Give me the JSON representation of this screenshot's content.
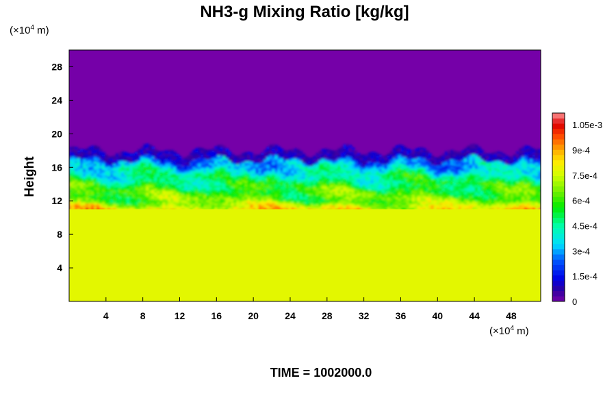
{
  "chart_data": {
    "type": "heatmap",
    "title": "NH3-g Mixing Ratio [kg/kg]",
    "ylabel": "Height",
    "y_unit_prefix": "(×10",
    "y_unit_exp": "4",
    "y_unit_suffix": " m)",
    "x_unit_prefix": "(×10",
    "x_unit_exp": "4",
    "x_unit_suffix": " m)",
    "xlim": [
      0,
      51.2
    ],
    "ylim": [
      0,
      30
    ],
    "x_ticks": [
      4,
      8,
      12,
      16,
      20,
      24,
      28,
      32,
      36,
      40,
      44,
      48
    ],
    "y_ticks": [
      4,
      8,
      12,
      16,
      20,
      24,
      28
    ],
    "colorbar": {
      "min": 0,
      "max": 0.00112,
      "tick_values": [
        0,
        0.00015,
        0.0003,
        0.00045,
        0.0006,
        0.00075,
        0.0009,
        0.00105
      ],
      "tick_labels": [
        "0",
        "1.5e-4",
        "3e-4",
        "4.5e-4",
        "6e-4",
        "7.5e-4",
        "9e-4",
        "1.05e-3"
      ]
    },
    "regions": {
      "lower_layer_value": 0.00078,
      "lower_layer_top": 11,
      "upper_layer_value": 0,
      "cloud_top_approx": 18
    },
    "footer": "TIME = 1002000.0"
  },
  "colors": {
    "background": "#ffffff",
    "upper_layer": "#7500a8",
    "lower_layer": "#dcff00"
  }
}
